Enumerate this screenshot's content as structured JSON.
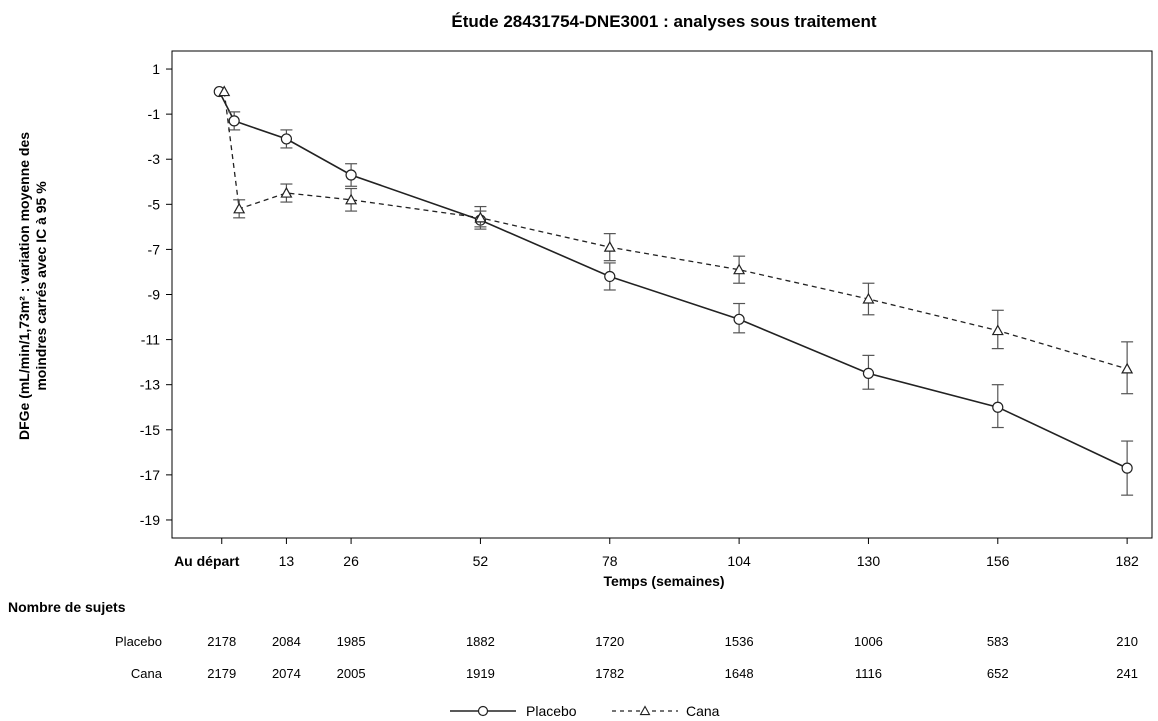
{
  "chart_data": {
    "type": "line",
    "title": "Étude 28431754-DNE3001 : analyses sous traitement",
    "ylabel_line1": "DFGe (mL/min/1,73m² : variation moyenne des",
    "ylabel_line2": "moindres carrés avec IC à 95 %",
    "xlabel": "Temps (semaines)",
    "ylim": [
      -19.8,
      1.8
    ],
    "yticks": [
      1,
      -1,
      -3,
      -5,
      -7,
      -9,
      -11,
      -13,
      -15,
      -17,
      -19
    ],
    "xlim": [
      -10,
      187
    ],
    "xticks": [
      {
        "x": 0,
        "label": "Au départ",
        "bold": true
      },
      {
        "x": 13,
        "label": "13",
        "bold": false
      },
      {
        "x": 26,
        "label": "26",
        "bold": false
      },
      {
        "x": 52,
        "label": "52",
        "bold": false
      },
      {
        "x": 78,
        "label": "78",
        "bold": false
      },
      {
        "x": 104,
        "label": "104",
        "bold": false
      },
      {
        "x": 130,
        "label": "130",
        "bold": false
      },
      {
        "x": 156,
        "label": "156",
        "bold": false
      },
      {
        "x": 182,
        "label": "182",
        "bold": false
      }
    ],
    "series": [
      {
        "name": "Placebo",
        "marker": "circle",
        "dash": "solid",
        "x": [
          -0.5,
          2.5,
          13,
          26,
          52,
          78,
          104,
          130,
          156,
          182
        ],
        "y": [
          0,
          -1.3,
          -2.1,
          -3.7,
          -5.7,
          -8.2,
          -10.1,
          -12.5,
          -14.0,
          -16.7
        ],
        "ci_low": [
          null,
          -1.7,
          -2.5,
          -4.2,
          -6.1,
          -8.8,
          -10.7,
          -13.2,
          -14.9,
          -17.9
        ],
        "ci_high": [
          null,
          -0.9,
          -1.7,
          -3.2,
          -5.3,
          -7.6,
          -9.4,
          -11.7,
          -13.0,
          -15.5
        ]
      },
      {
        "name": "Cana",
        "marker": "triangle",
        "dash": "dashed",
        "x": [
          0.5,
          3.5,
          13,
          26,
          52,
          78,
          104,
          130,
          156,
          182
        ],
        "y": [
          0,
          -5.2,
          -4.5,
          -4.8,
          -5.6,
          -6.9,
          -7.9,
          -9.2,
          -10.6,
          -12.3
        ],
        "ci_low": [
          null,
          -5.6,
          -4.9,
          -5.3,
          -6.0,
          -7.5,
          -8.5,
          -9.9,
          -11.4,
          -13.4
        ],
        "ci_high": [
          null,
          -4.8,
          -4.1,
          -4.3,
          -5.1,
          -6.3,
          -7.3,
          -8.5,
          -9.7,
          -11.1
        ]
      }
    ],
    "legend_position": "bottom-center"
  },
  "subjects_table": {
    "heading": "Nombre de sujets",
    "rows": [
      {
        "label": "Placebo",
        "values": [
          "2178",
          "2084",
          "1985",
          "1882",
          "1720",
          "1536",
          "1006",
          "583",
          "210"
        ]
      },
      {
        "label": "Cana",
        "values": [
          "2179",
          "2074",
          "2005",
          "1919",
          "1782",
          "1648",
          "1116",
          "652",
          "241"
        ]
      }
    ]
  },
  "legend": [
    {
      "label": "Placebo",
      "marker": "circle",
      "dash": "solid"
    },
    {
      "label": "Cana",
      "marker": "triangle",
      "dash": "dashed"
    }
  ],
  "colors": {
    "line": "#222222",
    "errorbar": "#555555",
    "axis": "#000000"
  }
}
